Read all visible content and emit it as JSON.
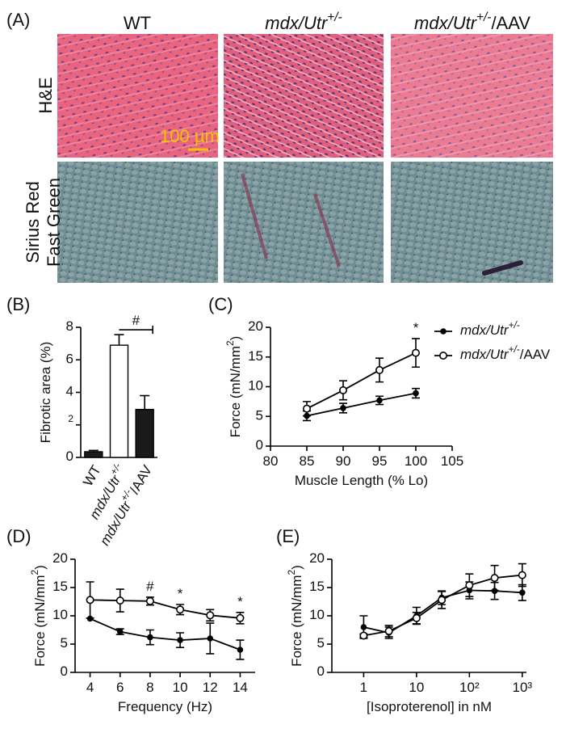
{
  "figure": {
    "panel_labels": [
      "(A)",
      "(B)",
      "(C)",
      "(D)",
      "(E)"
    ],
    "columns": [
      "WT",
      "mdx/Utr+/-",
      "mdx/Utr+/-/AAV"
    ],
    "row_labels": [
      "H&E",
      "Sirius Red",
      "Fast Green"
    ],
    "scale_bar": "100 µm"
  },
  "chart_data": [
    {
      "type": "bar",
      "ylabel": "Fibrotic area (%)",
      "categories": [
        "WT",
        "mdx/Utr+/-",
        "mdx/Utr+/-/AAV"
      ],
      "values": [
        0.35,
        6.9,
        2.95
      ],
      "errors": [
        0.08,
        0.65,
        0.85
      ],
      "colors": [
        "#1a1a1a",
        "#ffffff",
        "#1a1a1a"
      ],
      "ylim": [
        0,
        8
      ],
      "yticks": [
        0,
        2,
        4,
        6,
        8
      ],
      "annotation": "#"
    },
    {
      "type": "line",
      "xlabel": "Muscle Length (% Lo)",
      "ylabel": "Force (mN/mm2)",
      "x": [
        85,
        90,
        95,
        100
      ],
      "series": [
        {
          "name": "mdx/Utr+/-",
          "color": "#000000",
          "marker": "filled",
          "values": [
            5.1,
            6.4,
            7.7,
            8.9
          ],
          "errors": [
            0.8,
            0.8,
            0.7,
            0.8
          ]
        },
        {
          "name": "mdx/Utr+/-/AAV",
          "color": "#000000",
          "marker": "open",
          "values": [
            6.3,
            9.4,
            12.8,
            15.7
          ],
          "errors": [
            1.2,
            1.6,
            2.0,
            2.4
          ]
        }
      ],
      "xlim": [
        80,
        105
      ],
      "xticks": [
        80,
        85,
        90,
        95,
        100,
        105
      ],
      "ylim": [
        0,
        20
      ],
      "yticks": [
        0,
        5,
        10,
        15,
        20
      ],
      "annotations": [
        {
          "text": "*",
          "x": 100
        }
      ],
      "legend": "right"
    },
    {
      "type": "line",
      "xlabel": "Frequency (Hz)",
      "ylabel": "Force (mN/mm2)",
      "x": [
        4,
        6,
        8,
        10,
        12,
        14
      ],
      "series": [
        {
          "color": "#000000",
          "marker": "filled",
          "values": [
            9.5,
            7.2,
            6.2,
            5.7,
            6.0,
            4.0
          ],
          "errors": [
            0,
            0.5,
            1.3,
            1.3,
            2.7,
            1.7
          ]
        },
        {
          "color": "#000000",
          "marker": "open",
          "values": [
            12.8,
            12.7,
            12.6,
            11.1,
            10.1,
            9.6
          ],
          "errors": [
            3.2,
            2.0,
            0.7,
            0.9,
            1.0,
            1.0
          ]
        }
      ],
      "xlim": [
        3,
        15
      ],
      "xticks": [
        4,
        6,
        8,
        10,
        12,
        14
      ],
      "ylim": [
        0,
        20
      ],
      "yticks": [
        0,
        5,
        10,
        15,
        20
      ],
      "annotations": [
        {
          "text": "#",
          "x": 8
        },
        {
          "text": "*",
          "x": 10
        },
        {
          "text": "*",
          "x": 14
        }
      ]
    },
    {
      "type": "line",
      "xlabel": "[Isoproterenol] in nM",
      "ylabel": "Force (mN/mm2)",
      "xscale": "log",
      "x": [
        1,
        3,
        10,
        30,
        100,
        300,
        1000
      ],
      "series": [
        {
          "color": "#000000",
          "marker": "filled",
          "values": [
            8.0,
            7.0,
            10.0,
            13.2,
            14.5,
            14.4,
            14.1
          ],
          "errors": [
            2.0,
            1.0,
            1.5,
            1.2,
            1.5,
            1.5,
            1.4
          ]
        },
        {
          "color": "#000000",
          "marker": "open",
          "values": [
            6.5,
            7.3,
            9.6,
            12.8,
            15.4,
            16.7,
            17.2
          ],
          "errors": [
            0.3,
            1.0,
            1.0,
            1.5,
            2.0,
            2.2,
            2.0
          ]
        }
      ],
      "xlim": [
        0.25,
        1200
      ],
      "xticks": [
        1,
        10,
        {
          "value": 100,
          "label": "10²"
        },
        {
          "value": 1000,
          "label": "10³"
        }
      ],
      "ylim": [
        0,
        20
      ],
      "yticks": [
        0,
        5,
        10,
        15,
        20
      ]
    }
  ]
}
